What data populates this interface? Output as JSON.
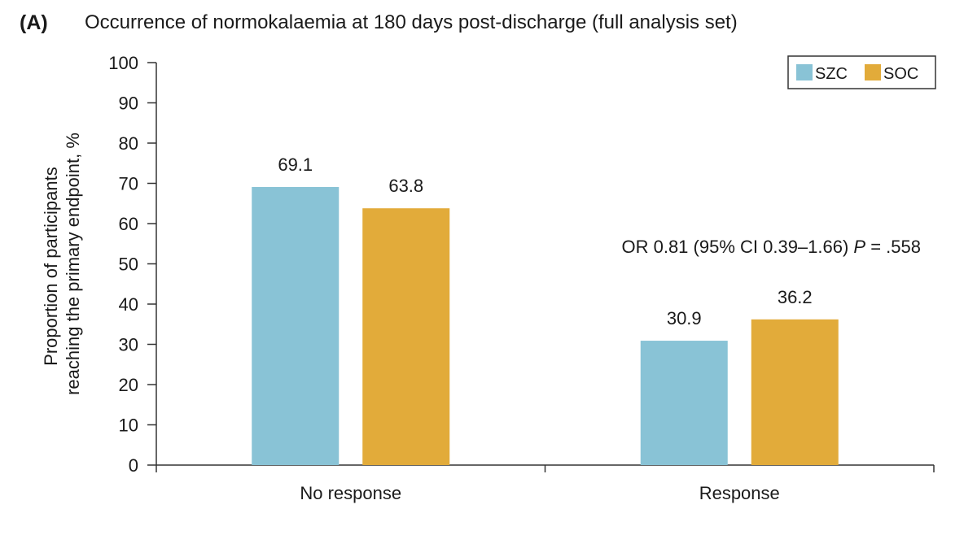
{
  "panel_label": "(A)",
  "chart_data": {
    "type": "bar",
    "title": "Occurrence of normokalaemia at 180 days post-discharge (full analysis set)",
    "xlabel": "",
    "ylabel_lines": [
      "Proportion of participants",
      "reaching the primary endpoint, %"
    ],
    "categories": [
      "No response",
      "Response"
    ],
    "series": [
      {
        "name": "SZC",
        "values": [
          69.1,
          30.9
        ],
        "color": "#89c3d6"
      },
      {
        "name": "SOC",
        "values": [
          63.8,
          36.2
        ],
        "color": "#e2ab3a"
      }
    ],
    "value_labels": [
      [
        "69.1",
        "30.9"
      ],
      [
        "63.8",
        "36.2"
      ]
    ],
    "ylim": [
      0,
      100
    ],
    "yticks": [
      0,
      10,
      20,
      30,
      40,
      50,
      60,
      70,
      80,
      90,
      100
    ],
    "grid": false,
    "legend_position": "top-right",
    "annotation": {
      "pre": "OR 0.81 (95% CI 0.39–1.66) ",
      "italic": "P",
      "post": " = .558"
    }
  }
}
